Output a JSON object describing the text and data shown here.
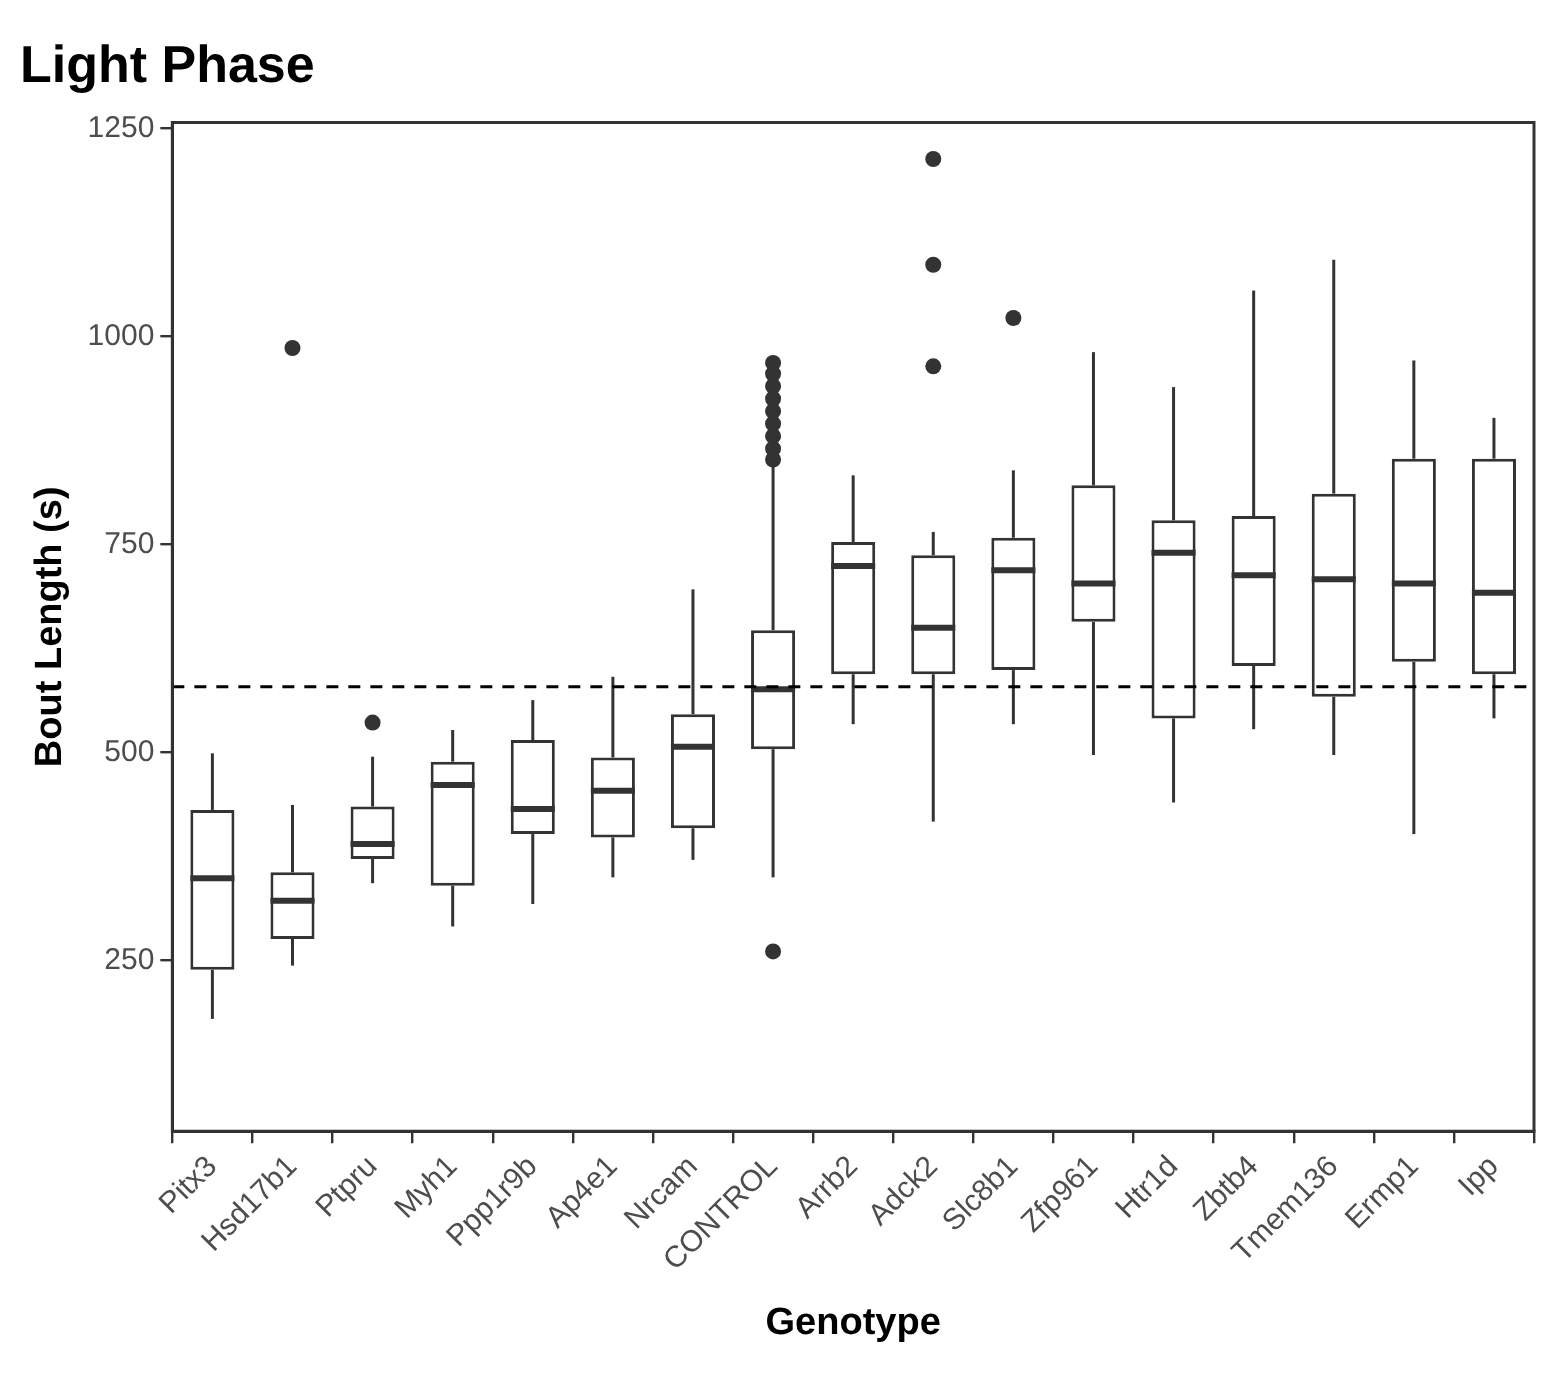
{
  "chart_data": {
    "type": "box",
    "title": "Light Phase",
    "xlabel": "Genotype",
    "ylabel": "Bout Length (s)",
    "categories": [
      "Pitx3",
      "Hsd17b1",
      "Ptpru",
      "Myh1",
      "Ppp1r9b",
      "Ap4e1",
      "Nrcam",
      "CONTROL",
      "Arrb2",
      "Adck2",
      "Slc8b1",
      "Zfp961",
      "Htr1d",
      "Zbtb4",
      "Tmem136",
      "Ermp1",
      "Ipp"
    ],
    "ylim": [
      45,
      1257
    ],
    "yticks": [
      250,
      500,
      750,
      1000,
      1250
    ],
    "grid": false,
    "legend": false,
    "ref_lines": [
      {
        "axis": "y",
        "value": 579,
        "color": "#000000",
        "line_style": "dashed"
      }
    ],
    "series": [
      {
        "color": "#333333",
        "boxes": [
          {
            "low": 180,
            "q1": 239,
            "median": 349,
            "q3": 431,
            "high": 499
          },
          {
            "low": 244,
            "q1": 276,
            "median": 322,
            "q3": 356,
            "high": 437,
            "outliers": [
              986
            ]
          },
          {
            "low": 343,
            "q1": 372,
            "median": 390,
            "q3": 435,
            "high": 495,
            "outliers": [
              536
            ]
          },
          {
            "low": 291,
            "q1": 340,
            "median": 461,
            "q3": 489,
            "high": 527
          },
          {
            "low": 318,
            "q1": 402,
            "median": 432,
            "q3": 515,
            "high": 563
          },
          {
            "low": 350,
            "q1": 398,
            "median": 454,
            "q3": 494,
            "high": 591
          },
          {
            "low": 371,
            "q1": 409,
            "median": 507,
            "q3": 546,
            "high": 696
          },
          {
            "low": 350,
            "q1": 504,
            "median": 576,
            "q3": 647,
            "high": 848,
            "outliers": [
              261,
              852,
              865,
              880,
              895,
              910,
              925,
              940,
              955,
              968
            ]
          },
          {
            "low": 534,
            "q1": 594,
            "median": 724,
            "q3": 753,
            "high": 833
          },
          {
            "low": 417,
            "q1": 594,
            "median": 650,
            "q3": 737,
            "high": 765,
            "outliers": [
              964,
              1086,
              1213
            ]
          },
          {
            "low": 534,
            "q1": 599,
            "median": 719,
            "q3": 758,
            "high": 839,
            "outliers": [
              1022
            ]
          },
          {
            "low": 497,
            "q1": 657,
            "median": 703,
            "q3": 821,
            "high": 981
          },
          {
            "low": 440,
            "q1": 541,
            "median": 740,
            "q3": 779,
            "high": 939
          },
          {
            "low": 528,
            "q1": 604,
            "median": 713,
            "q3": 784,
            "high": 1055
          },
          {
            "low": 497,
            "q1": 567,
            "median": 708,
            "q3": 811,
            "high": 1092
          },
          {
            "low": 402,
            "q1": 609,
            "median": 703,
            "q3": 853,
            "high": 971
          },
          {
            "low": 541,
            "q1": 594,
            "median": 692,
            "q3": 853,
            "high": 902
          }
        ]
      }
    ]
  }
}
